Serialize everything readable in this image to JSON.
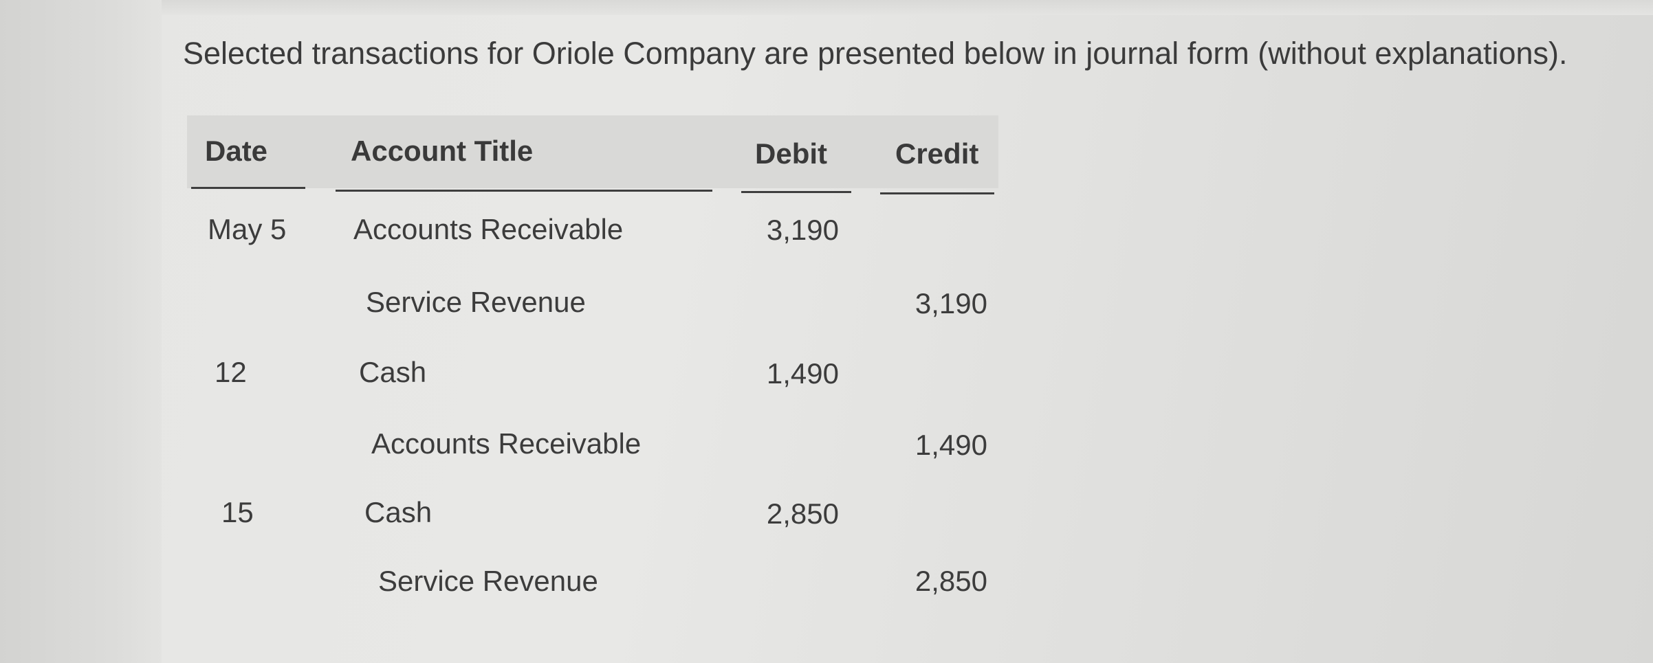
{
  "intro_text": "Selected transactions for Oriole Company are presented below in journal form (without explanations).",
  "columns": {
    "date": "Date",
    "account_title": "Account Title",
    "debit": "Debit",
    "credit": "Credit"
  },
  "rows": [
    {
      "date": "May 5",
      "account": "Accounts Receivable",
      "debit": "3,190",
      "credit": ""
    },
    {
      "date": "",
      "account": "Service Revenue",
      "debit": "",
      "credit": "3,190"
    },
    {
      "date": "12",
      "account": "Cash",
      "debit": "1,490",
      "credit": ""
    },
    {
      "date": "",
      "account": "Accounts Receivable",
      "debit": "",
      "credit": "1,490"
    },
    {
      "date": "15",
      "account": "Cash",
      "debit": "2,850",
      "credit": ""
    },
    {
      "date": "",
      "account": "Service Revenue",
      "debit": "",
      "credit": "2,850"
    }
  ]
}
